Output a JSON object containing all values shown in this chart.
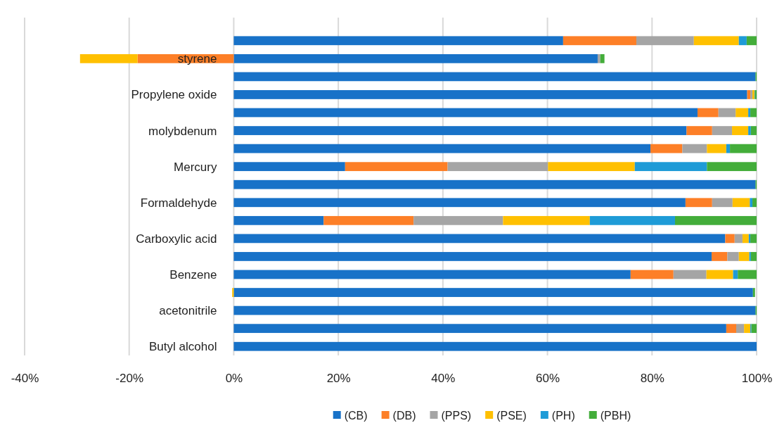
{
  "chart_data": {
    "type": "bar",
    "orientation": "horizontal",
    "stacked": true,
    "categories": [
      null,
      "styrene",
      null,
      "Propylene oxide",
      null,
      "molybdenum",
      null,
      "Mercury",
      null,
      "Formaldehyde",
      null,
      "Carboxylic acid",
      null,
      "Benzene",
      null,
      "acetonitrile",
      null,
      "Butyl alcohol"
    ],
    "series": [
      {
        "name": "(CB)",
        "color": "#1872c8",
        "values": [
          63,
          69.6,
          99.8,
          98.2,
          88.7,
          86.6,
          79.7,
          21.3,
          99.8,
          86.4,
          17.2,
          94.0,
          91.4,
          75.9,
          99.3,
          99.8,
          94.2,
          100
        ]
      },
      {
        "name": "(DB)",
        "color": "#fd7f27",
        "values": [
          14,
          -18.4,
          0,
          0.6,
          4.0,
          4.9,
          6.1,
          19.6,
          0,
          5.1,
          17.2,
          1.8,
          3.0,
          8.2,
          0,
          0,
          1.9,
          0
        ]
      },
      {
        "name": "(PPS)",
        "color": "#a5a5a5",
        "values": [
          11,
          0.5,
          0,
          0.4,
          3.3,
          3.8,
          4.7,
          19.2,
          0,
          3.9,
          17.1,
          1.5,
          2.2,
          6.3,
          null,
          0,
          1.5,
          0
        ]
      },
      {
        "name": "(PSE)",
        "color": "#ffc000",
        "values": [
          8.6,
          -11.0,
          0,
          0.4,
          2.4,
          3.1,
          3.7,
          16.6,
          0,
          3.3,
          16.6,
          1.2,
          2.0,
          5.1,
          -0.3,
          0,
          1.2,
          0
        ]
      },
      {
        "name": "(PH)",
        "color": "#1e9bd7",
        "values": [
          1.5,
          0,
          0,
          0.1,
          0.4,
          0.5,
          0.7,
          13.8,
          0,
          0.5,
          16.3,
          0.3,
          0.3,
          0.9,
          0,
          0,
          0.2,
          0
        ]
      },
      {
        "name": "(PBH)",
        "color": "#43ad3a",
        "values": [
          1.9,
          0.8,
          0.2,
          0.3,
          1.2,
          1.1,
          5.1,
          9.5,
          0.2,
          0.8,
          15.6,
          1.2,
          1.1,
          3.6,
          0.4,
          0.2,
          1.0,
          0
        ]
      }
    ],
    "xlim": [
      -40,
      100
    ],
    "xticks": [
      {
        "value": -40,
        "label": "-40%"
      },
      {
        "value": -20,
        "label": "-20%"
      },
      {
        "value": 0,
        "label": "0%"
      },
      {
        "value": 20,
        "label": "20%"
      },
      {
        "value": 40,
        "label": "40%"
      },
      {
        "value": 60,
        "label": "60%"
      },
      {
        "value": 80,
        "label": "80%"
      },
      {
        "value": 100,
        "label": "100%"
      }
    ],
    "grid": "x",
    "legend": "bottom"
  }
}
